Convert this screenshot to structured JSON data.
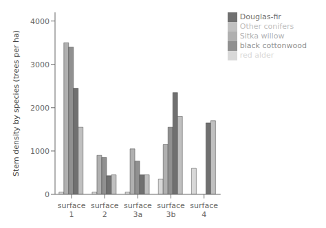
{
  "chart_data": {
    "type": "bar",
    "categories": [
      "surface\n1",
      "surface\n2",
      "surface\n3a",
      "surface\n3b",
      "surface\n4"
    ],
    "series": [
      {
        "name": "red alder",
        "color": "#d8d8d8",
        "values": [
          50,
          50,
          50,
          350,
          600
        ]
      },
      {
        "name": "Sitka willow",
        "color": "#b0b0b0",
        "values": [
          3500,
          900,
          1050,
          1150,
          0
        ]
      },
      {
        "name": "black cottonwood",
        "color": "#909090",
        "values": [
          3400,
          850,
          770,
          1550,
          0
        ]
      },
      {
        "name": "Douglas-fir",
        "color": "#707070",
        "values": [
          2450,
          430,
          450,
          2350,
          1650
        ]
      },
      {
        "name": "Other conifers",
        "color": "#c0c0c0",
        "values": [
          1550,
          450,
          450,
          1800,
          1700
        ]
      }
    ],
    "ylabel": "Stem density by species (trees per ha)",
    "ylim": [
      0,
      4200
    ],
    "yticks": [
      0,
      1000,
      2000,
      3000,
      4000
    ],
    "grid": false,
    "legend": "upper right"
  }
}
